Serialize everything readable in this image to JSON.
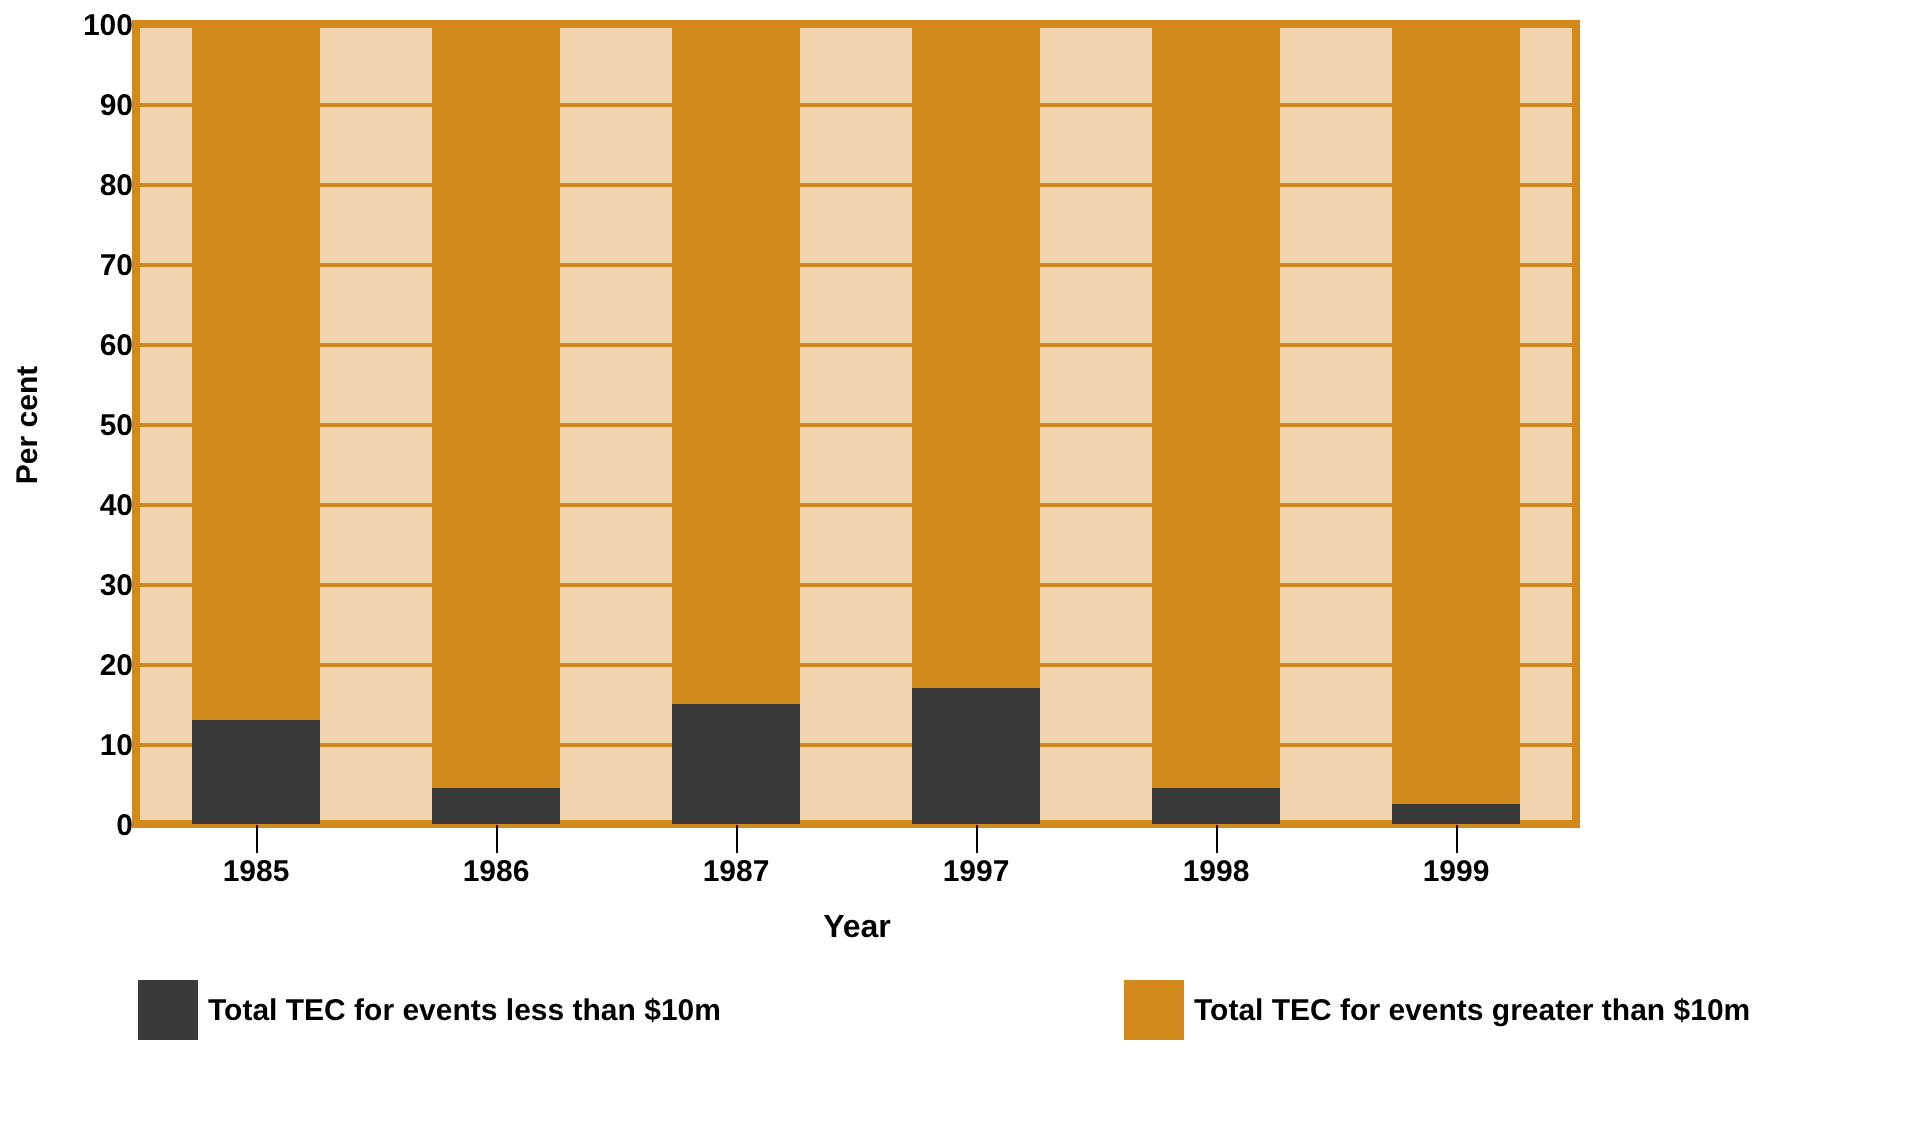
{
  "chart_data": {
    "type": "bar",
    "stacked": true,
    "xlabel": "Year",
    "ylabel": "Per cent",
    "categories": [
      "1985",
      "1986",
      "1987",
      "1997",
      "1998",
      "1999"
    ],
    "series": [
      {
        "name": "Total TEC for events less than $10m",
        "color": "#3a3a3a",
        "values": [
          13,
          4.5,
          15,
          17,
          4.5,
          2.5
        ]
      },
      {
        "name": "Total TEC for events greater than $10m",
        "color": "#d4891c",
        "values": [
          87,
          95.5,
          85,
          83,
          95.5,
          97.5
        ]
      }
    ],
    "ylim": [
      0,
      100
    ],
    "yticks": [
      0,
      10,
      20,
      30,
      40,
      50,
      60,
      70,
      80,
      90,
      100
    ],
    "grid": "y",
    "legend": "bottom"
  }
}
